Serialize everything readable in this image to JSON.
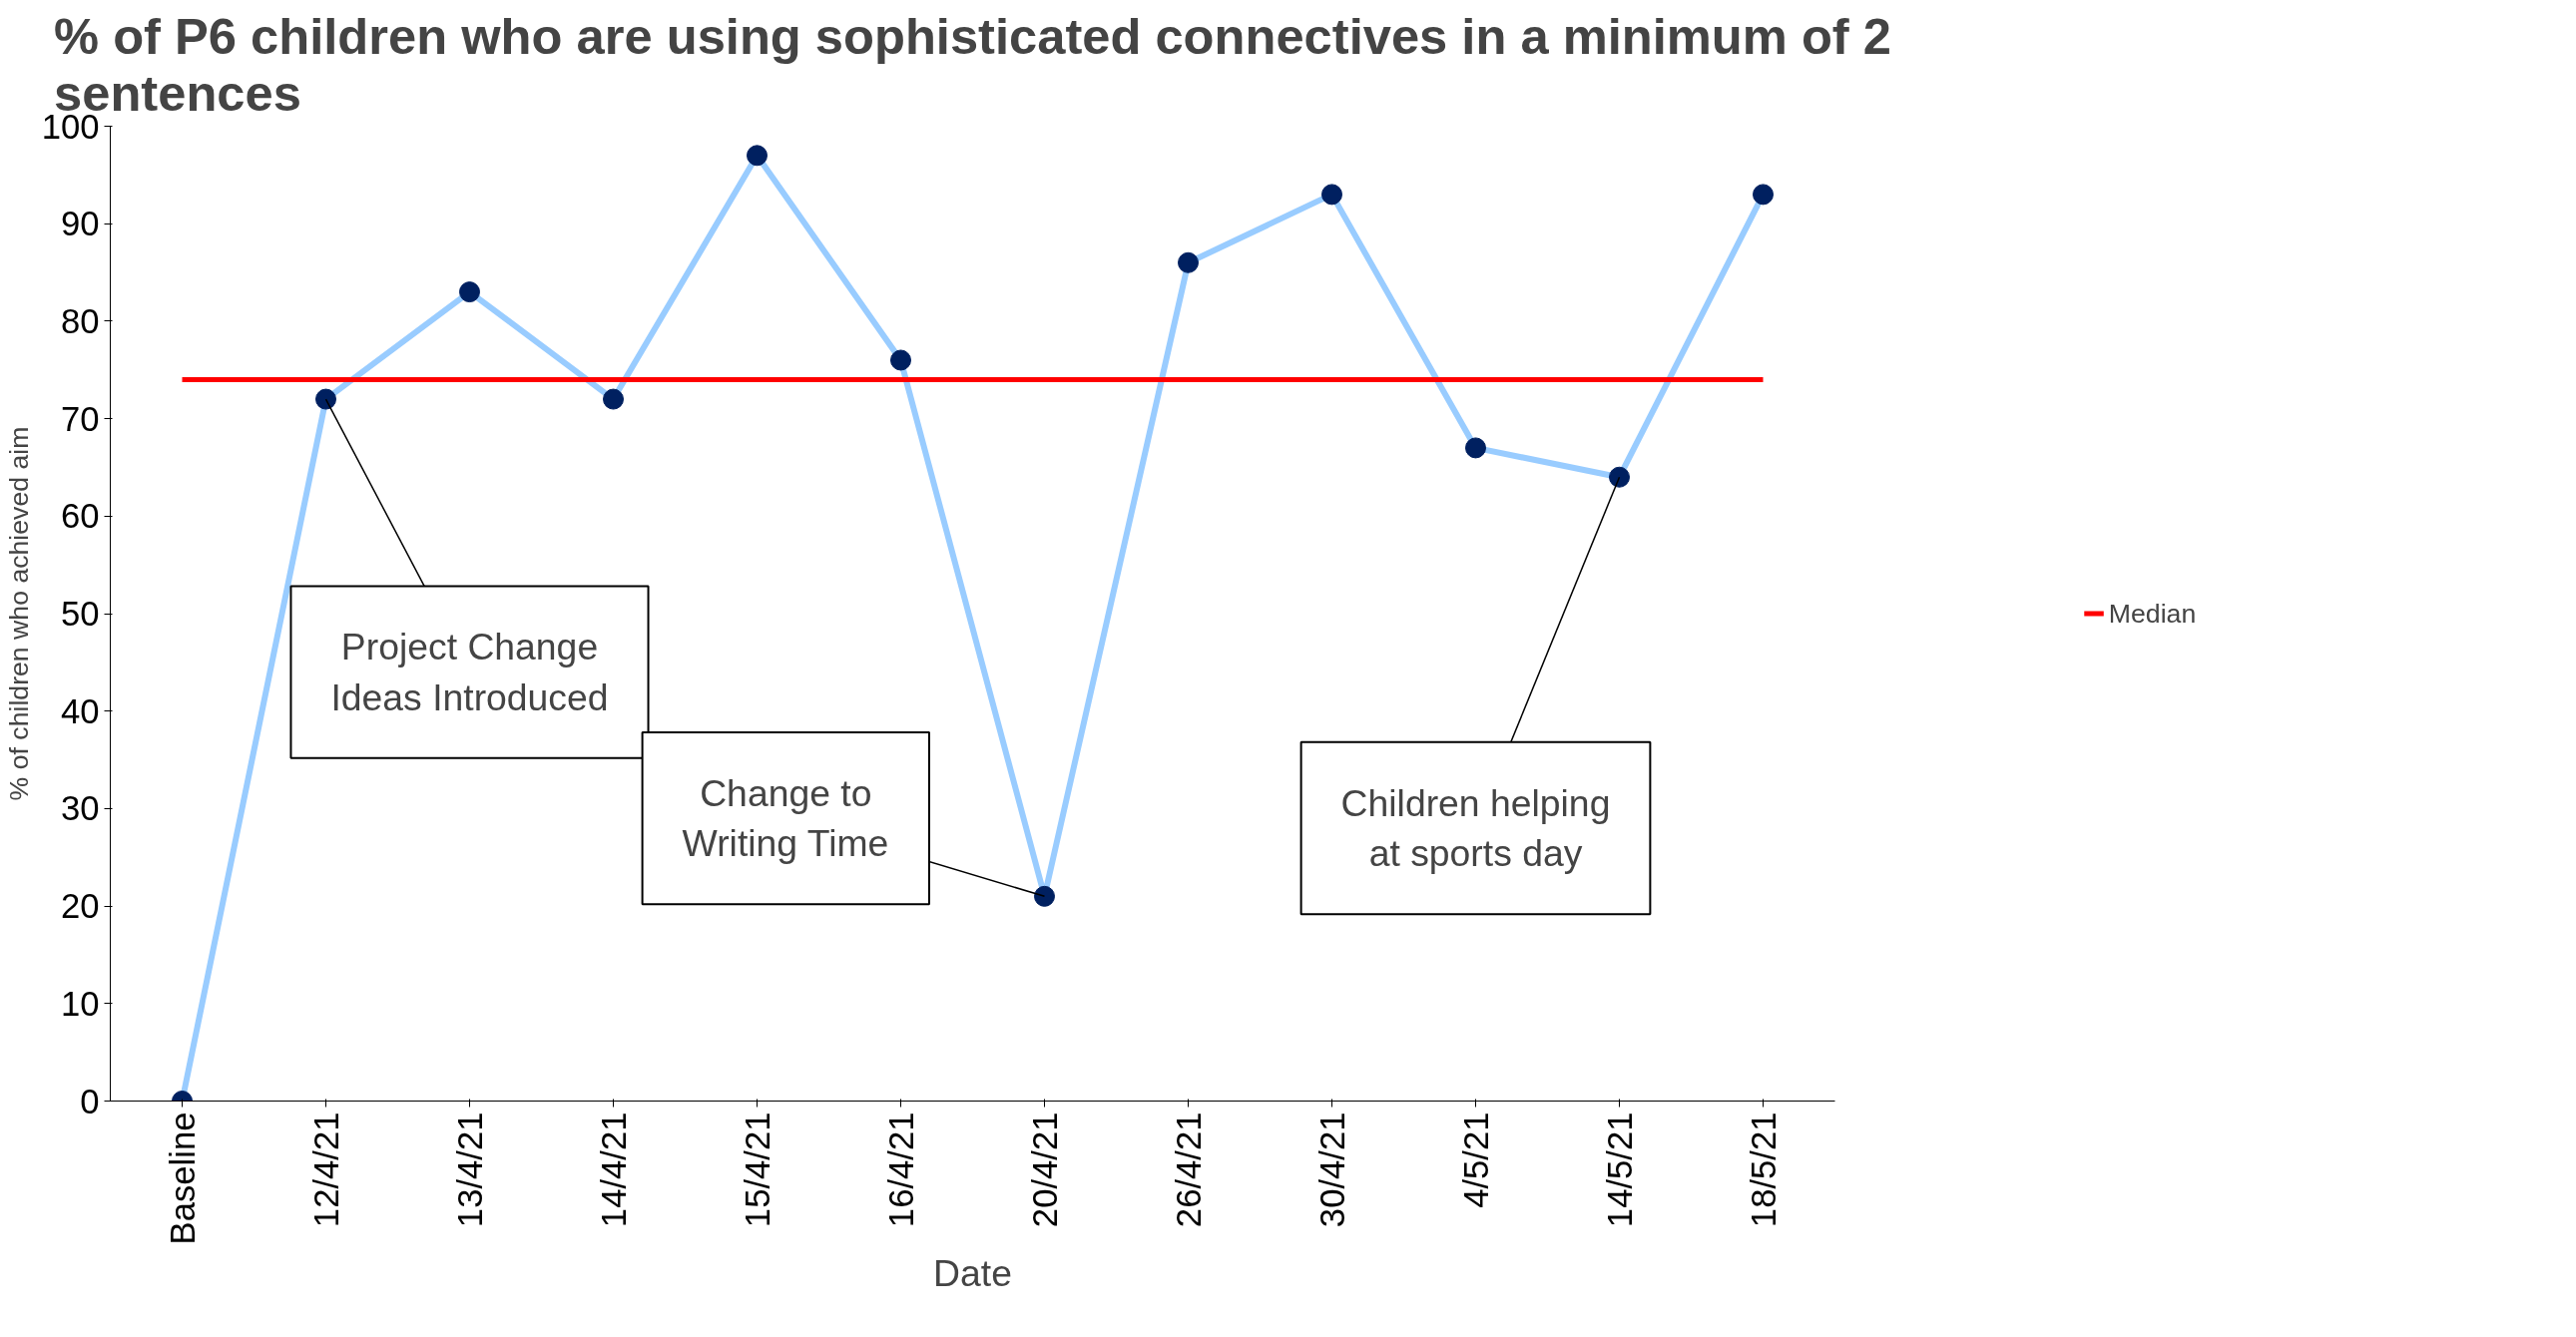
{
  "chart_data": {
    "type": "line",
    "title": "% of P6 children who are using sophisticated connectives in a minimum of 2 sentences",
    "xlabel": "Date",
    "ylabel": "% of children who achieved aim",
    "categories": [
      "Baseline",
      "12/4/21",
      "13/4/21",
      "14/4/21",
      "15/4/21",
      "16/4/21",
      "20/4/21",
      "26/4/21",
      "30/4/21",
      "4/5/21",
      "14/5/21",
      "18/5/21"
    ],
    "series": [
      {
        "color": "#99ccff",
        "values": [
          0,
          72,
          83,
          72,
          97,
          76,
          21,
          86,
          93,
          67,
          64,
          93
        ]
      }
    ],
    "marker": "circle",
    "line_style": "solid",
    "ylim": [
      0,
      100
    ],
    "yticks": [
      0,
      10,
      20,
      30,
      40,
      50,
      60,
      70,
      80,
      90,
      100
    ],
    "ref_lines": [
      {
        "axis": "y",
        "value": 74,
        "label": "Median",
        "color": "#ff0000"
      }
    ],
    "annotations": [
      {
        "text": "Project Change\nIdeas Introduced",
        "x": "12/4/21",
        "y": 72
      },
      {
        "text": "Change to\nWriting Time",
        "x": "20/4/21",
        "y": 21
      },
      {
        "text": "Children helping\nat sports day",
        "x": "14/5/21",
        "y": 64
      }
    ],
    "grid": false,
    "legend": "right"
  }
}
